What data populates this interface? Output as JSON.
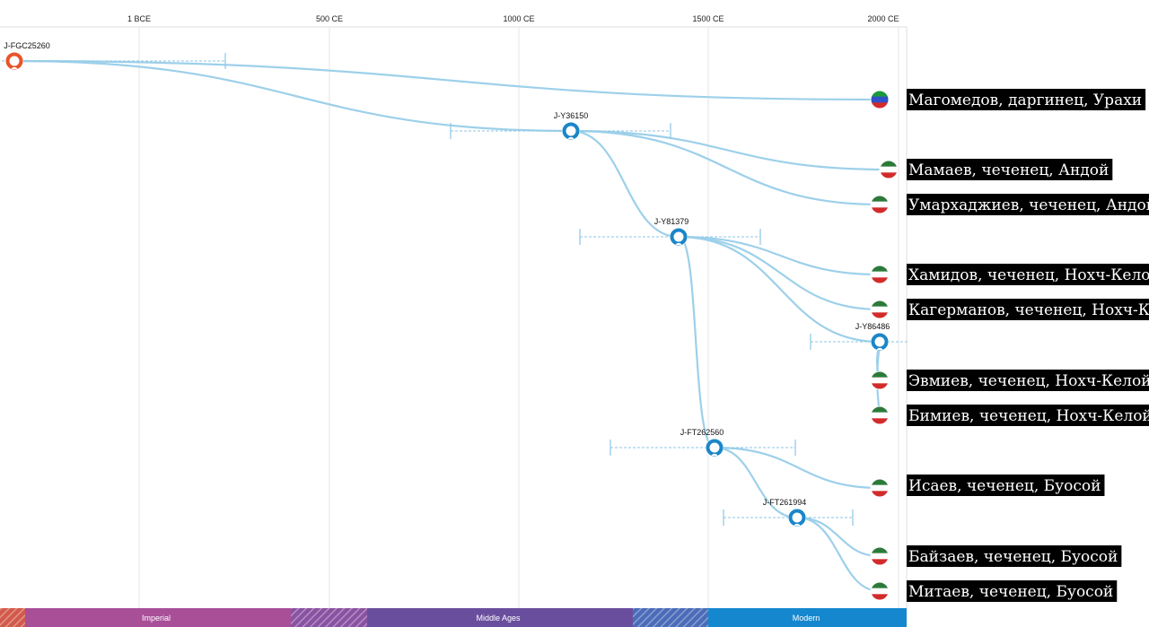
{
  "timeline": {
    "axis_labels": [
      "1 BCE",
      "500 CE",
      "1000 CE",
      "1500 CE",
      "2000 CE"
    ],
    "eras": [
      {
        "label": "",
        "color": "#d25a4a",
        "hatched": true
      },
      {
        "label": "Imperial",
        "color": "#a84f98",
        "hatched": false
      },
      {
        "label": "",
        "color": "#8a52a2",
        "hatched": true
      },
      {
        "label": "Middle Ages",
        "color": "#6a4e9e",
        "hatched": false
      },
      {
        "label": "",
        "color": "#4b6cb8",
        "hatched": true
      },
      {
        "label": "Modern",
        "color": "#1587cf",
        "hatched": false
      }
    ]
  },
  "nodes": [
    {
      "id": "J-FGC25260",
      "color": "#e8542a",
      "icon": "person-icon"
    },
    {
      "id": "J-Y36150",
      "color": "#1a86c8",
      "icon": "person-icon"
    },
    {
      "id": "J-Y81379",
      "color": "#1a86c8",
      "icon": "person-icon"
    },
    {
      "id": "J-Y86486",
      "color": "#1a86c8",
      "icon": "person-icon"
    },
    {
      "id": "J-FT262560",
      "color": "#1a86c8",
      "icon": "person-icon"
    },
    {
      "id": "J-FT261994",
      "color": "#1a86c8",
      "icon": "person-icon"
    }
  ],
  "samples": [
    {
      "label": "Магомедов, даргинец, Урахи",
      "flag": "dagestan-flag-icon",
      "colors": [
        "#1a9a3c",
        "#2f52c8",
        "#d22b2b"
      ]
    },
    {
      "label": "Мамаев, чеченец, Андой",
      "flag": "chechnya-flag-icon",
      "colors": [
        "#2c7a3a",
        "#ffffff",
        "#d22b2b"
      ]
    },
    {
      "label": "Умархаджиев, чеченец, Андой",
      "flag": "chechnya-flag-icon",
      "colors": [
        "#2c7a3a",
        "#ffffff",
        "#d22b2b"
      ]
    },
    {
      "label": "Хамидов, чеченец, Нохч-Келой",
      "flag": "chechnya-flag-icon",
      "colors": [
        "#2c7a3a",
        "#ffffff",
        "#d22b2b"
      ]
    },
    {
      "label": "Кагерманов, чеченец, Нохч-Келой",
      "flag": "chechnya-flag-icon",
      "colors": [
        "#2c7a3a",
        "#ffffff",
        "#d22b2b"
      ]
    },
    {
      "label": "Эвмиев, чеченец, Нохч-Келой",
      "flag": "chechnya-flag-icon",
      "colors": [
        "#2c7a3a",
        "#ffffff",
        "#d22b2b"
      ]
    },
    {
      "label": "Бимиев, чеченец, Нохч-Келой",
      "flag": "chechnya-flag-icon",
      "colors": [
        "#2c7a3a",
        "#ffffff",
        "#d22b2b"
      ]
    },
    {
      "label": "Исаев, чеченец, Буосой",
      "flag": "chechnya-flag-icon",
      "colors": [
        "#2c7a3a",
        "#ffffff",
        "#d22b2b"
      ]
    },
    {
      "label": "Байзаев, чеченец, Буосой",
      "flag": "chechnya-flag-icon",
      "colors": [
        "#2c7a3a",
        "#ffffff",
        "#d22b2b"
      ]
    },
    {
      "label": "Митаев, чеченец, Буосой",
      "flag": "chechnya-flag-icon",
      "colors": [
        "#2c7a3a",
        "#ffffff",
        "#d22b2b"
      ]
    }
  ],
  "style": {
    "link_color": "#9dd0ea",
    "ci_color": "#8cc6e4"
  }
}
